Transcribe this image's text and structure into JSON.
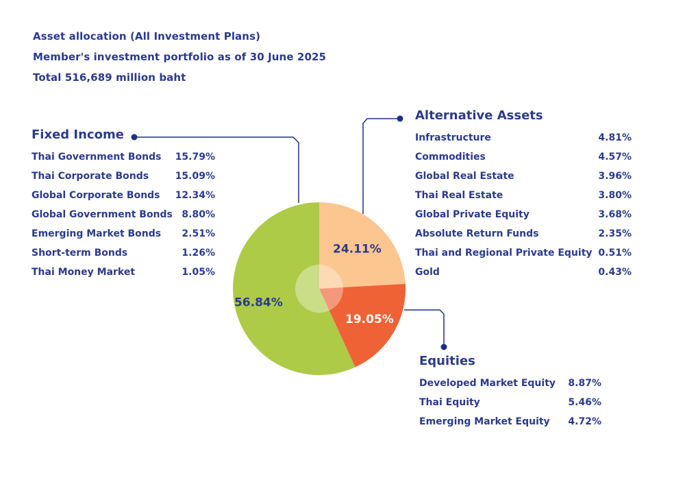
{
  "header": {
    "line1": "Asset allocation (All Investment Plans)",
    "line2": "Member's investment portfolio as of  30 June 2025",
    "line3": "Total  516,689 million baht"
  },
  "colors": {
    "text": "#2b3a8c",
    "fixed_income": "#aecb48",
    "alternative_assets": "#fbc690",
    "equities": "#ef6236",
    "connector": "#1f2f86"
  },
  "chart_data": {
    "type": "pie",
    "slices": [
      {
        "name": "Fixed Income",
        "value": 56.84,
        "label": "56.84%",
        "color": "#aecb48"
      },
      {
        "name": "Alternative Assets",
        "value": 24.11,
        "label": "24.11%",
        "color": "#fbc690"
      },
      {
        "name": "Equities",
        "value": 19.05,
        "label": "19.05%",
        "color": "#ef6236"
      }
    ]
  },
  "fixed_income": {
    "title": "Fixed Income",
    "items": [
      {
        "name": "Thai Government Bonds",
        "pct": "15.79%"
      },
      {
        "name": "Thai Corporate Bonds",
        "pct": "15.09%"
      },
      {
        "name": "Global Corporate Bonds",
        "pct": "12.34%"
      },
      {
        "name": "Global Government Bonds",
        "pct": "8.80%"
      },
      {
        "name": "Emerging Market Bonds",
        "pct": "2.51%"
      },
      {
        "name": "Short-term Bonds",
        "pct": "1.26%"
      },
      {
        "name": "Thai Money Market",
        "pct": "1.05%"
      }
    ]
  },
  "alternative_assets": {
    "title": "Alternative Assets",
    "items": [
      {
        "name": "Infrastructure",
        "pct": "4.81%"
      },
      {
        "name": "Commodities",
        "pct": "4.57%"
      },
      {
        "name": "Global Real Estate",
        "pct": "3.96%"
      },
      {
        "name": "Thai Real Estate",
        "pct": "3.80%"
      },
      {
        "name": "Global Private Equity",
        "pct": "3.68%"
      },
      {
        "name": "Absolute Return Funds",
        "pct": "2.35%"
      },
      {
        "name": "Thai and Regional Private Equity",
        "pct": "0.51%"
      },
      {
        "name": "Gold",
        "pct": "0.43%"
      }
    ]
  },
  "equities": {
    "title": "Equities",
    "items": [
      {
        "name": "Developed Market Equity",
        "pct": "8.87%"
      },
      {
        "name": "Thai Equity",
        "pct": "5.46%"
      },
      {
        "name": "Emerging Market Equity",
        "pct": "4.72%"
      }
    ]
  }
}
